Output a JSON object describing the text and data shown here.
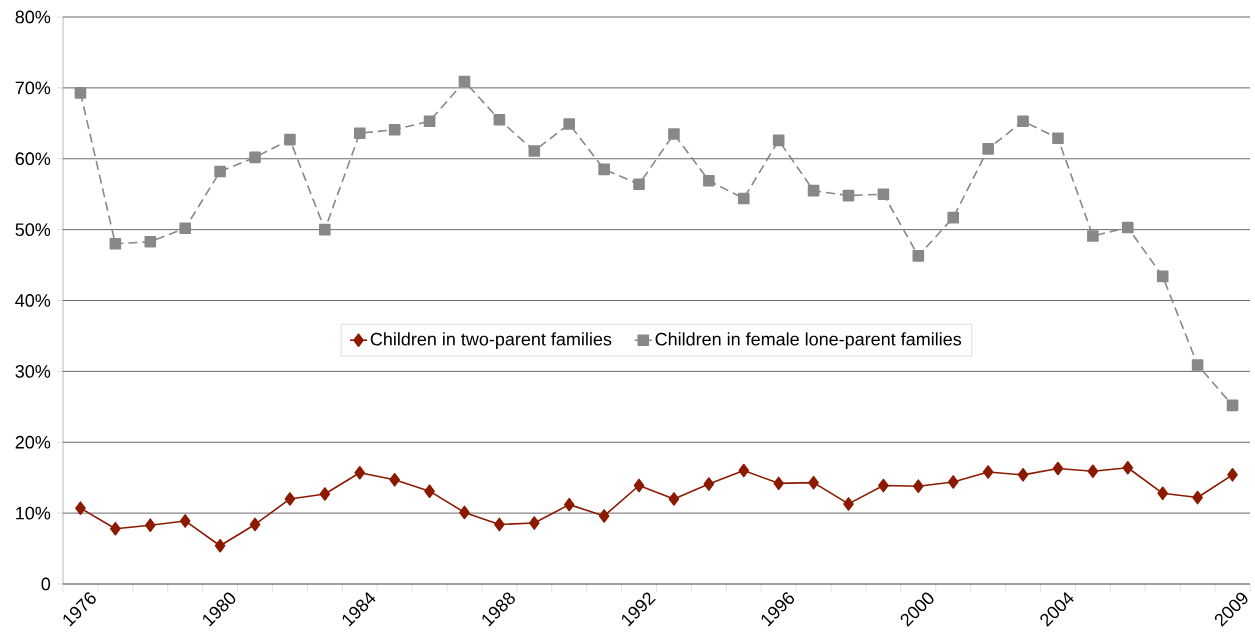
{
  "chart_data": {
    "type": "line",
    "categories": [
      "1976",
      null,
      null,
      null,
      "1980",
      null,
      null,
      null,
      "1984",
      null,
      null,
      null,
      "1988",
      null,
      null,
      null,
      "1992",
      null,
      null,
      null,
      "1996",
      null,
      null,
      null,
      "2000",
      null,
      null,
      null,
      "2004",
      null,
      null,
      null,
      null,
      "2009"
    ],
    "series": [
      {
        "name": "Children in two-parent families",
        "color": "#8b1a00",
        "marker": "diamond",
        "line_style": "solid",
        "values": [
          10.7,
          7.8,
          8.3,
          8.9,
          5.4,
          8.4,
          12.0,
          12.7,
          15.7,
          14.7,
          13.1,
          10.1,
          8.4,
          8.6,
          11.2,
          9.6,
          13.9,
          12.0,
          14.1,
          16.0,
          14.2,
          14.3,
          11.3,
          13.9,
          13.8,
          14.4,
          15.8,
          15.4,
          16.3,
          15.9,
          16.4,
          12.8,
          12.2,
          15.4
        ]
      },
      {
        "name": "Children in female lone-parent families",
        "color": "#888888",
        "marker": "square",
        "line_style": "dashed",
        "values": [
          69.3,
          48.0,
          48.3,
          50.2,
          58.2,
          60.2,
          62.7,
          50.0,
          63.6,
          64.1,
          65.3,
          70.9,
          65.5,
          61.1,
          64.9,
          58.5,
          56.4,
          63.5,
          56.9,
          54.4,
          62.6,
          55.5,
          54.8,
          55.0,
          46.3,
          51.7,
          61.4,
          65.3,
          62.9,
          49.1,
          50.3,
          43.4,
          30.9,
          25.2
        ]
      }
    ],
    "ylim": [
      0,
      80
    ],
    "yticks": [
      0,
      {
        "value": 10,
        "label": "10%"
      },
      {
        "value": 20,
        "label": "20%"
      },
      {
        "value": 30,
        "label": "30%"
      },
      {
        "value": 40,
        "label": "40%"
      },
      {
        "value": 50,
        "label": "50%"
      },
      {
        "value": 60,
        "label": "60%"
      },
      {
        "value": 70,
        "label": "70%"
      },
      {
        "value": 80,
        "label": "80%"
      }
    ],
    "grid": "y",
    "legend": "center"
  }
}
